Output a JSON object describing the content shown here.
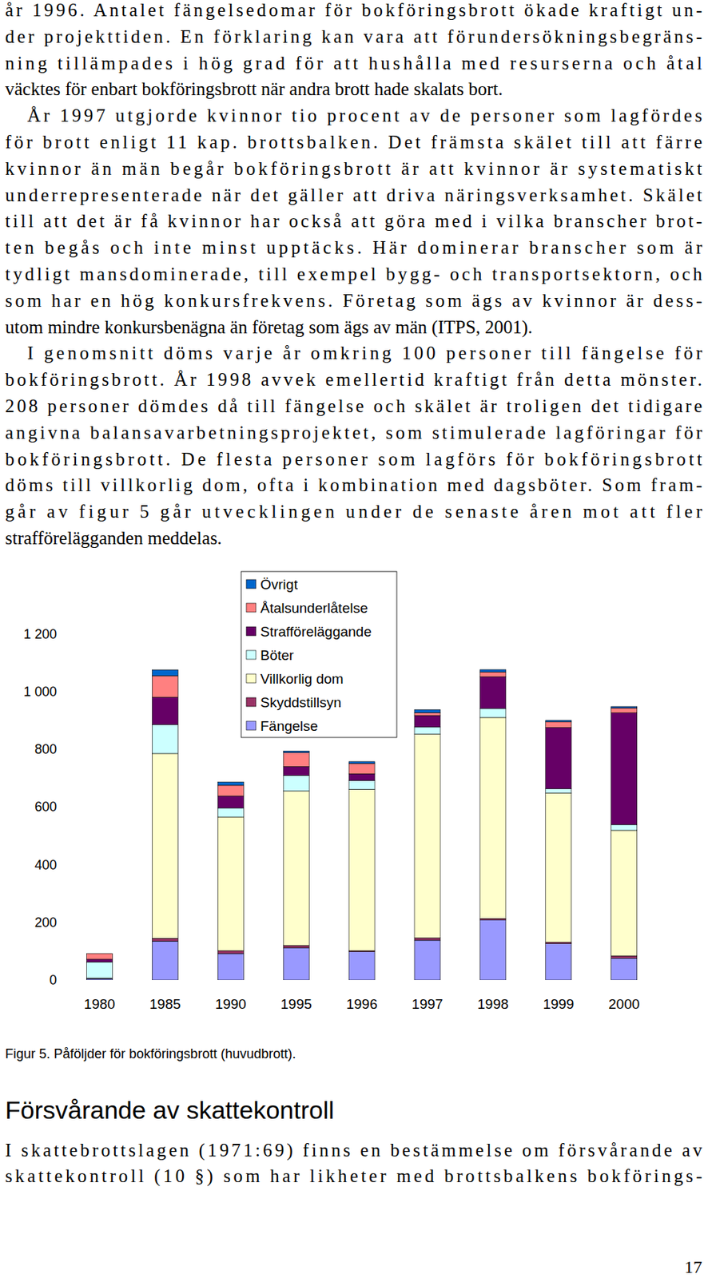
{
  "body": [
    [
      "år 1996. Antalet fängelsedomar för bokföringsbrott ökade kraftigt un-",
      "der projekttiden. En förklaring kan vara att förundersökningsbegräns-",
      "ning tillämpades i hög grad för att hushålla med resurserna och åtal",
      "väcktes för enbart bokföringsbrott när andra brott hade skalats bort."
    ],
    [
      "År 1997 utgjorde kvinnor tio procent av de personer som lagfördes",
      "för brott enligt 11 kap. brottsbalken. Det främsta skälet till att färre",
      "kvinnor än män begår bokföringsbrott är att kvinnor är systematiskt",
      "underrepresenterade när det gäller att driva näringsverksamhet. Skälet",
      "till att det är få kvinnor har också att göra med i vilka branscher brot-",
      "ten begås och inte minst upptäcks. Här dominerar branscher som är",
      "tydligt mansdominerade, till exempel bygg- och transportsektorn, och",
      "som har en hög konkursfrekvens. Företag som ägs av kvinnor är dess-",
      "utom mindre konkursbenägna än företag som ägs av män (ITPS, 2001)."
    ],
    [
      "I genomsnitt döms varje år omkring 100 personer till fängelse för",
      "bokföringsbrott. År 1998 avvek emellertid kraftigt från detta mönster.",
      "208 personer dömdes då till fängelse och skälet är troligen det tidigare",
      "angivna balansavarbetningsprojektet, som stimulerade lagföringar för",
      "bokföringsbrott. De flesta personer som lagförs för bokföringsbrott",
      "döms till villkorlig dom, ofta i kombination med dagsböter. Som fram-",
      "går av figur 5 går utvecklingen under de senaste åren mot att fler",
      "strafförelägganden meddelas."
    ]
  ],
  "chart_data": {
    "type": "bar",
    "stacked": true,
    "categories": [
      "1980",
      "1985",
      "1990",
      "1995",
      "1996",
      "1997",
      "1998",
      "1999",
      "2000"
    ],
    "series": [
      {
        "name": "Fängelse",
        "color": "#9999ff",
        "values": [
          5,
          135,
          92,
          112,
          98,
          138,
          208,
          126,
          76
        ]
      },
      {
        "name": "Skyddstillsyn",
        "color": "#993366",
        "values": [
          0,
          10,
          10,
          8,
          4,
          8,
          5,
          5,
          8
        ]
      },
      {
        "name": "Villkorlig dom",
        "color": "#ffffcc",
        "values": [
          2,
          640,
          463,
          535,
          559,
          706,
          697,
          517,
          435
        ]
      },
      {
        "name": "Böter",
        "color": "#ccffff",
        "values": [
          55,
          100,
          31,
          54,
          31,
          25,
          31,
          15,
          20
        ]
      },
      {
        "name": "Strafföreläggande",
        "color": "#660066",
        "values": [
          10,
          95,
          42,
          31,
          23,
          40,
          110,
          212,
          387
        ]
      },
      {
        "name": "Åtalsunderlåtelse",
        "color": "#ff8080",
        "values": [
          20,
          75,
          37,
          48,
          36,
          10,
          17,
          20,
          17
        ]
      },
      {
        "name": "Övrigt",
        "color": "#0066cc",
        "values": [
          0,
          20,
          11,
          6,
          6,
          10,
          8,
          5,
          5
        ]
      }
    ],
    "ylim": [
      0,
      1200
    ],
    "yticks": [
      0,
      200,
      400,
      600,
      800,
      {
        "value": 1000,
        "label": "1 000"
      },
      {
        "value": 1200,
        "label": "1 200"
      }
    ],
    "grid": false
  },
  "caption": "Figur 5. Påföljder för bokföringsbrott (huvudbrott).",
  "heading": "Försvårande av skattekontroll",
  "section_body": [
    "I skattebrottslagen (1971:69) finns en bestämmelse om försvårande av",
    "skattekontroll (10 §) som har likheter med brottsbalkens bokförings-"
  ],
  "page_number": "17"
}
